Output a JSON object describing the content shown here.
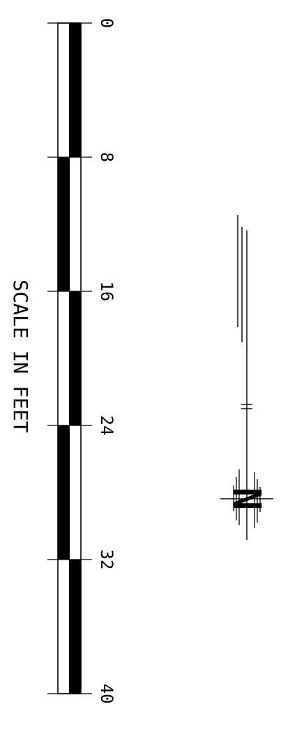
{
  "scale_bar": {
    "title": "SCALE IN FEET",
    "ticks": [
      "0",
      "8",
      "16",
      "24",
      "32",
      "40"
    ]
  },
  "north_arrow": {
    "letter": "N"
  },
  "colors": {
    "ink": "#000000",
    "paper": "#ffffff"
  }
}
